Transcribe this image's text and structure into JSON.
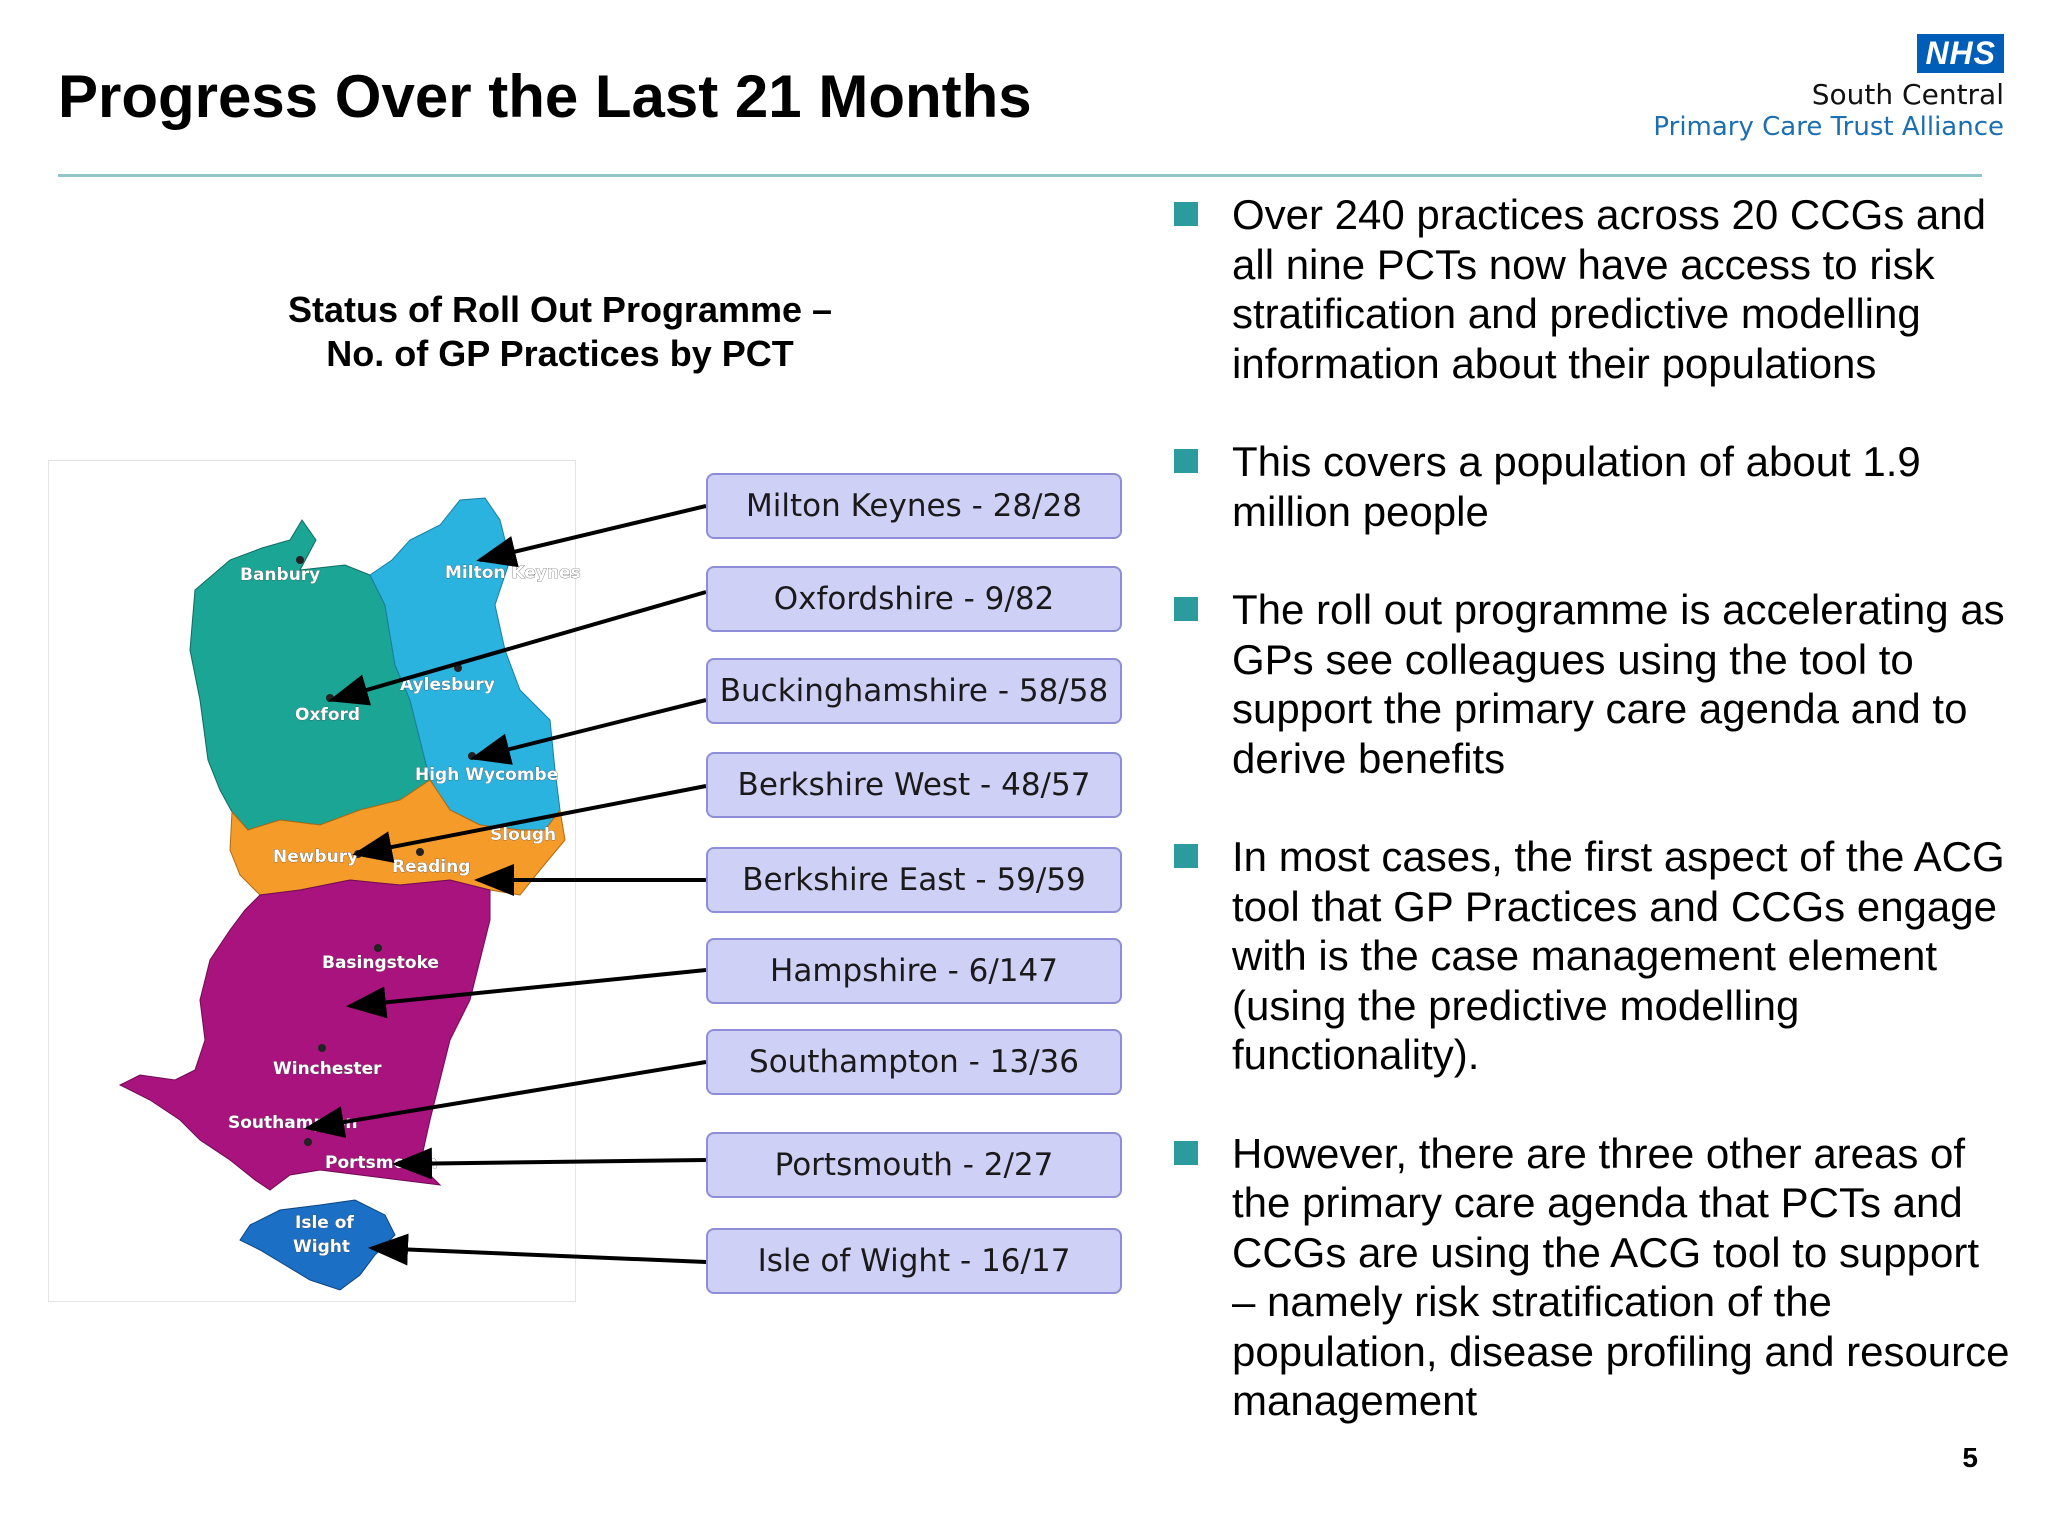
{
  "slide": {
    "title": "Progress Over the Last 21 Months",
    "page_number": "5"
  },
  "logo": {
    "nhs": "NHS",
    "org_line1": "South Central",
    "org_line2": "Primary Care Trust Alliance"
  },
  "chart": {
    "title_line1": "Status of Roll Out Programme –",
    "title_line2": "No. of GP Practices by PCT",
    "boxes": [
      "Milton Keynes - 28/28",
      "Oxfordshire - 9/82",
      "Buckinghamshire - 58/58",
      "Berkshire West - 48/57",
      "Berkshire East - 59/59",
      "Hampshire - 6/147",
      "Southampton - 13/36",
      "Portsmouth - 2/27",
      "Isle of Wight - 16/17"
    ],
    "map_labels": {
      "banbury": "Banbury",
      "milton_keynes": "Milton Keynes",
      "aylesbury": "Aylesbury",
      "oxford": "Oxford",
      "high_wycombe": "High Wycombe",
      "slough": "Slough",
      "newbury": "Newbury",
      "reading": "Reading",
      "basingstoke": "Basingstoke",
      "winchester": "Winchester",
      "southampton": "Southampton",
      "portsmouth": "Portsmouth",
      "isle_of": "Isle of",
      "wight": "Wight"
    },
    "colors": {
      "oxfordshire": "#1aa595",
      "buckinghamshire": "#2bb3e0",
      "berkshire": "#f49b2a",
      "hampshire": "#a8137e",
      "isle_of_wight": "#1b6fc4",
      "box_fill": "#cfd0f6",
      "box_border": "#8e8ed8"
    }
  },
  "bullets": [
    "Over 240 practices across 20 CCGs and all nine PCTs now have access to risk stratification and predictive modelling information about their populations",
    "This covers a population of about 1.9 million people",
    "The roll out programme is accelerating as GPs see colleagues using the tool to support the primary care agenda and to derive benefits",
    "In most cases, the first aspect of the ACG tool that GP Practices and CCGs engage with is the case management element (using the predictive modelling functionality).",
    "However, there are three other areas of the primary care agenda that PCTs and CCGs are using the ACG tool to support – namely risk stratification of the population, disease profiling and resource management"
  ]
}
